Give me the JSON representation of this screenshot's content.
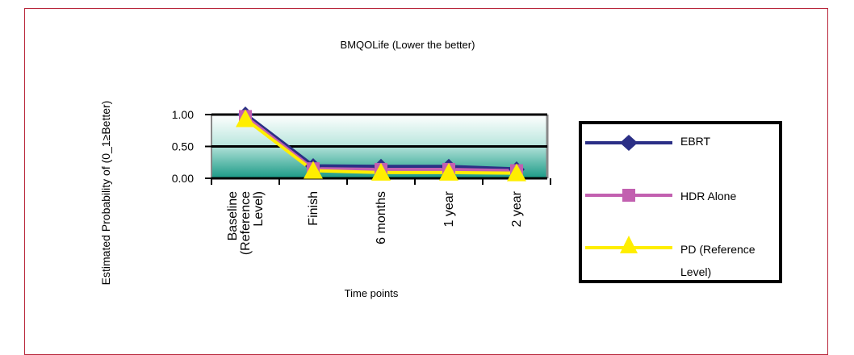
{
  "chart_data": {
    "type": "line",
    "title": "BMQOLife (Lower the better)",
    "xlabel": "Time points",
    "ylabel": "Estimated Probability of (0_1≥Better)",
    "categories": [
      "Baseline (Reference Level)",
      "Finish",
      "6 months",
      "1 year",
      "2 year"
    ],
    "category_tick_lines": [
      [
        "Baseline",
        "(Reference",
        "Level)"
      ],
      [
        "Finish"
      ],
      [
        "6 months"
      ],
      [
        "1 year"
      ],
      [
        "2 year"
      ]
    ],
    "yticks": [
      "1.00",
      "0.50",
      "0.00"
    ],
    "ylim": [
      0,
      1.0
    ],
    "grid": true,
    "legend_position": "right",
    "series": [
      {
        "name": "EBRT",
        "values": [
          1.0,
          0.19,
          0.18,
          0.18,
          0.14
        ],
        "color": "#2b2f86",
        "marker": "diamond"
      },
      {
        "name": "HDR Alone",
        "values": [
          0.97,
          0.15,
          0.14,
          0.14,
          0.12
        ],
        "color": "#c260b0",
        "marker": "square"
      },
      {
        "name": "PD (Reference Level)",
        "values": [
          0.93,
          0.12,
          0.09,
          0.09,
          0.08
        ],
        "color": "#ffee00",
        "marker": "triangle"
      }
    ]
  },
  "legend": {
    "items": [
      {
        "lines": [
          "EBRT"
        ]
      },
      {
        "lines": [
          "HDR Alone"
        ]
      },
      {
        "lines": [
          "PD (Reference",
          "Level)"
        ]
      }
    ]
  }
}
